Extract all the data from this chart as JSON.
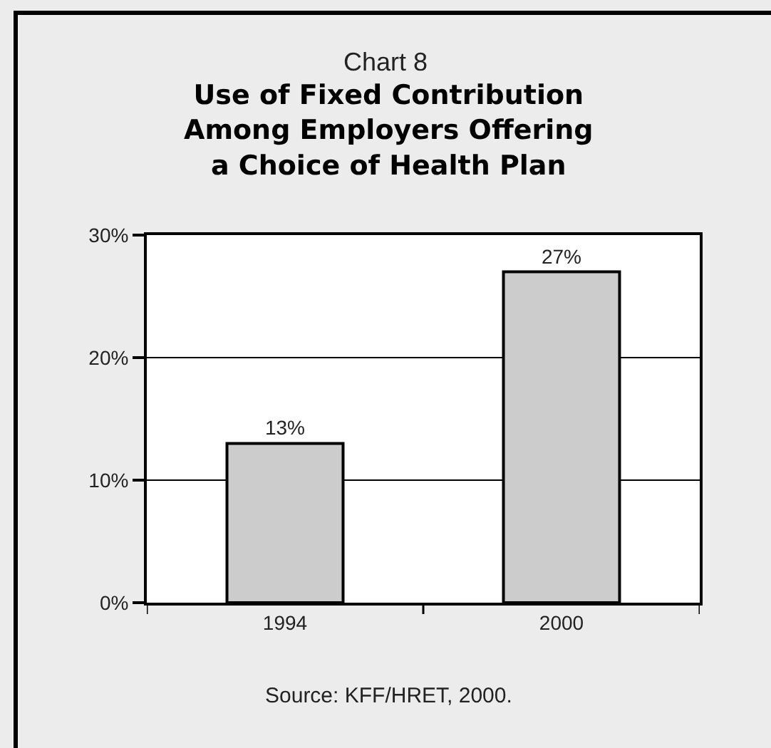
{
  "chart_data": {
    "type": "bar",
    "title": "Chart 8",
    "subtitle": "Use of Fixed Contribution Among Employers Offering a Choice of Health Plan",
    "categories": [
      "1994",
      "2000"
    ],
    "values": [
      13,
      27
    ],
    "color": "#cccccc",
    "value_labels": [
      "13%",
      "27%"
    ],
    "ylim": [
      0,
      30
    ],
    "yticks": [
      {
        "value": 0,
        "label": "0%"
      },
      {
        "value": 10,
        "label": "10%"
      },
      {
        "value": 20,
        "label": "20%"
      },
      {
        "value": 30,
        "label": "30%"
      }
    ],
    "grid": "y",
    "annotations": [
      "Source: KFF/HRET, 2000."
    ]
  }
}
